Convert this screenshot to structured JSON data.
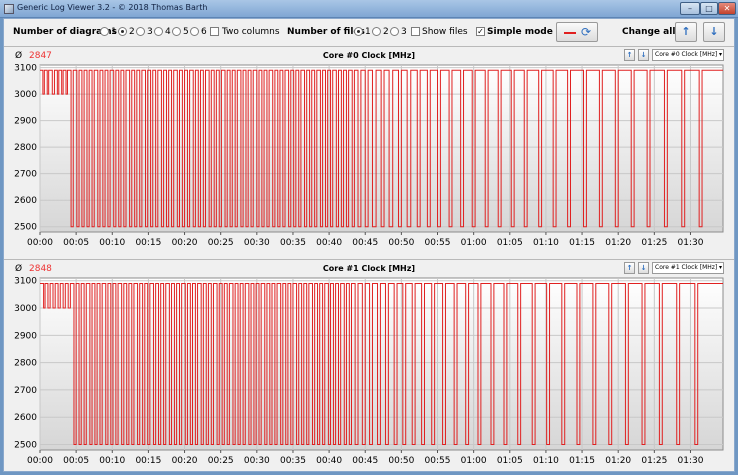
{
  "window": {
    "title": "Generic Log Viewer 3.2 - © 2018 Thomas Barth",
    "min": "–",
    "max": "□",
    "close": "✕"
  },
  "toolbar": {
    "diagrams_label": "Number of diagrams",
    "diagram_options": [
      "1",
      "2",
      "3",
      "4",
      "5",
      "6"
    ],
    "diagrams_selected": "2",
    "two_columns_label": "Two columns",
    "two_columns_checked": false,
    "files_label": "Number of files",
    "file_options": [
      "1",
      "2",
      "3"
    ],
    "files_selected": "1",
    "show_files_label": "Show files",
    "show_files_checked": false,
    "simple_mode_label": "Simple mode",
    "simple_mode_checked": true,
    "change_all_label": "Change all",
    "accent_color": "#2f6fbf",
    "line_color": "#e02020"
  },
  "panels": [
    {
      "avg_symbol": "Ø",
      "average": "2847",
      "title": "Core #0 Clock [MHz]",
      "selector": "Core #0 Clock [MHz]"
    },
    {
      "avg_symbol": "Ø",
      "average": "2848",
      "title": "Core #1 Clock [MHz]",
      "selector": "Core #1 Clock [MHz]"
    }
  ],
  "chart_data": [
    {
      "type": "line",
      "title": "Core #0 Clock [MHz]",
      "ylim": [
        2480,
        3110
      ],
      "y_ticks": [
        "2500",
        "2600",
        "2700",
        "2800",
        "2900",
        "3000",
        "3100"
      ],
      "x_ticks": [
        "00:00",
        "00:05",
        "00:10",
        "00:15",
        "00:20",
        "00:25",
        "00:30",
        "00:35",
        "00:40",
        "00:45",
        "00:50",
        "00:55",
        "01:00",
        "01:05",
        "01:10",
        "01:15",
        "01:20",
        "01:25",
        "01:30"
      ],
      "grid": true,
      "levels": {
        "high": 3090,
        "low": 2500,
        "start_dip": 3000
      },
      "series": [
        {
          "high_runs_minutes": [
            [
              0.0,
              0.4
            ],
            [
              0.6,
              1.0
            ],
            [
              1.2,
              1.7
            ],
            [
              2.0,
              2.4
            ],
            [
              2.6,
              3.0
            ],
            [
              3.2,
              3.6
            ],
            [
              3.8,
              4.3
            ],
            [
              4.6,
              5.1
            ],
            [
              5.4,
              5.8
            ],
            [
              6.1,
              6.5
            ],
            [
              6.8,
              7.2
            ],
            [
              7.5,
              8.0
            ],
            [
              8.3,
              8.7
            ],
            [
              9.0,
              9.4
            ],
            [
              9.7,
              10.2
            ],
            [
              10.5,
              10.9
            ],
            [
              11.2,
              11.6
            ],
            [
              11.9,
              12.4
            ],
            [
              12.7,
              13.1
            ],
            [
              13.4,
              13.8
            ],
            [
              14.1,
              14.6
            ],
            [
              14.9,
              15.3
            ],
            [
              15.6,
              16.0
            ],
            [
              16.3,
              16.8
            ],
            [
              17.1,
              17.5
            ],
            [
              17.8,
              18.2
            ],
            [
              18.5,
              19.0
            ],
            [
              19.3,
              19.7
            ],
            [
              20.0,
              20.4
            ],
            [
              20.7,
              21.2
            ],
            [
              21.5,
              21.9
            ],
            [
              22.2,
              22.6
            ],
            [
              22.9,
              23.4
            ],
            [
              23.7,
              24.1
            ],
            [
              24.4,
              24.8
            ],
            [
              25.1,
              25.6
            ],
            [
              25.9,
              26.3
            ],
            [
              26.6,
              27.0
            ],
            [
              27.3,
              27.8
            ],
            [
              28.1,
              28.5
            ],
            [
              28.8,
              29.2
            ],
            [
              29.5,
              30.0
            ],
            [
              30.3,
              30.7
            ],
            [
              31.0,
              31.4
            ],
            [
              31.7,
              32.2
            ],
            [
              32.5,
              32.9
            ],
            [
              33.2,
              33.6
            ],
            [
              33.9,
              34.4
            ],
            [
              34.7,
              35.1
            ],
            [
              35.4,
              35.8
            ],
            [
              36.1,
              36.6
            ],
            [
              36.9,
              37.3
            ],
            [
              37.6,
              38.0
            ],
            [
              38.3,
              38.8
            ],
            [
              39.1,
              39.5
            ],
            [
              39.8,
              40.2
            ],
            [
              40.5,
              41.0
            ],
            [
              41.3,
              41.7
            ],
            [
              42.0,
              42.4
            ],
            [
              42.7,
              43.2
            ],
            [
              43.5,
              44.0
            ],
            [
              44.4,
              45.0
            ],
            [
              45.4,
              46.0
            ],
            [
              46.5,
              47.2
            ],
            [
              47.6,
              48.3
            ],
            [
              48.8,
              49.6
            ],
            [
              50.0,
              50.8
            ],
            [
              51.3,
              52.2
            ],
            [
              52.6,
              53.6
            ],
            [
              54.0,
              55.0
            ],
            [
              55.4,
              56.6
            ],
            [
              57.0,
              58.2
            ],
            [
              58.6,
              59.8
            ],
            [
              60.2,
              61.6
            ],
            [
              62.0,
              63.4
            ],
            [
              63.8,
              65.2
            ],
            [
              65.6,
              67.0
            ],
            [
              67.4,
              69.0
            ],
            [
              69.4,
              71.0
            ],
            [
              71.4,
              73.0
            ],
            [
              73.4,
              75.2
            ],
            [
              75.6,
              77.4
            ],
            [
              77.8,
              79.6
            ],
            [
              80.0,
              81.8
            ],
            [
              82.2,
              84.0
            ],
            [
              84.4,
              86.4
            ],
            [
              86.8,
              88.8
            ],
            [
              89.2,
              91.2
            ],
            [
              91.6,
              94.5
            ]
          ]
        }
      ]
    },
    {
      "type": "line",
      "title": "Core #1 Clock [MHz]",
      "ylim": [
        2480,
        3110
      ],
      "y_ticks": [
        "2500",
        "2600",
        "2700",
        "2800",
        "2900",
        "3000",
        "3100"
      ],
      "x_ticks": [
        "00:00",
        "00:05",
        "00:10",
        "00:15",
        "00:20",
        "00:25",
        "00:30",
        "00:35",
        "00:40",
        "00:45",
        "00:50",
        "00:55",
        "01:00",
        "01:05",
        "01:10",
        "01:15",
        "01:20",
        "01:25",
        "01:30"
      ],
      "grid": true,
      "levels": {
        "high": 3090,
        "low": 2500,
        "start_dip": 3000
      },
      "series": [
        {
          "high_runs_minutes": [
            [
              0.0,
              0.5
            ],
            [
              0.7,
              1.1
            ],
            [
              1.4,
              1.8
            ],
            [
              2.1,
              2.5
            ],
            [
              2.8,
              3.2
            ],
            [
              3.5,
              3.9
            ],
            [
              4.2,
              4.7
            ],
            [
              5.0,
              5.4
            ],
            [
              5.7,
              6.1
            ],
            [
              6.4,
              6.9
            ],
            [
              7.2,
              7.6
            ],
            [
              7.9,
              8.3
            ],
            [
              8.6,
              9.1
            ],
            [
              9.4,
              9.8
            ],
            [
              10.1,
              10.5
            ],
            [
              10.8,
              11.3
            ],
            [
              11.6,
              12.0
            ],
            [
              12.3,
              12.7
            ],
            [
              13.0,
              13.5
            ],
            [
              13.8,
              14.2
            ],
            [
              14.5,
              14.9
            ],
            [
              15.2,
              15.7
            ],
            [
              16.0,
              16.4
            ],
            [
              16.7,
              17.1
            ],
            [
              17.4,
              17.9
            ],
            [
              18.2,
              18.6
            ],
            [
              18.9,
              19.3
            ],
            [
              19.6,
              20.1
            ],
            [
              20.4,
              20.8
            ],
            [
              21.1,
              21.5
            ],
            [
              21.8,
              22.3
            ],
            [
              22.6,
              23.0
            ],
            [
              23.3,
              23.7
            ],
            [
              24.0,
              24.5
            ],
            [
              24.8,
              25.2
            ],
            [
              25.5,
              25.9
            ],
            [
              26.2,
              26.7
            ],
            [
              27.0,
              27.4
            ],
            [
              27.7,
              28.1
            ],
            [
              28.4,
              28.9
            ],
            [
              29.2,
              29.6
            ],
            [
              29.9,
              30.3
            ],
            [
              30.6,
              31.1
            ],
            [
              31.4,
              31.8
            ],
            [
              32.1,
              32.5
            ],
            [
              32.8,
              33.3
            ],
            [
              33.6,
              34.0
            ],
            [
              34.3,
              34.7
            ],
            [
              35.0,
              35.5
            ],
            [
              35.8,
              36.2
            ],
            [
              36.5,
              36.9
            ],
            [
              37.2,
              37.7
            ],
            [
              38.0,
              38.4
            ],
            [
              38.7,
              39.1
            ],
            [
              39.4,
              39.9
            ],
            [
              40.2,
              40.6
            ],
            [
              40.9,
              41.3
            ],
            [
              41.6,
              42.1
            ],
            [
              42.4,
              42.8
            ],
            [
              43.1,
              43.6
            ],
            [
              44.0,
              44.6
            ],
            [
              45.0,
              45.6
            ],
            [
              46.0,
              46.7
            ],
            [
              47.1,
              47.8
            ],
            [
              48.2,
              49.0
            ],
            [
              49.4,
              50.2
            ],
            [
              50.6,
              51.5
            ],
            [
              51.9,
              52.8
            ],
            [
              53.2,
              54.2
            ],
            [
              54.6,
              55.7
            ],
            [
              56.1,
              57.3
            ],
            [
              57.7,
              58.9
            ],
            [
              59.3,
              60.6
            ],
            [
              61.0,
              62.4
            ],
            [
              62.8,
              64.2
            ],
            [
              64.6,
              66.1
            ],
            [
              66.5,
              68.1
            ],
            [
              68.5,
              70.1
            ],
            [
              70.5,
              72.2
            ],
            [
              72.6,
              74.3
            ],
            [
              74.7,
              76.5
            ],
            [
              76.9,
              78.7
            ],
            [
              79.1,
              81.0
            ],
            [
              81.4,
              83.3
            ],
            [
              83.7,
              85.7
            ],
            [
              86.1,
              88.1
            ],
            [
              88.5,
              90.6
            ],
            [
              91.0,
              94.5
            ]
          ]
        }
      ]
    }
  ]
}
